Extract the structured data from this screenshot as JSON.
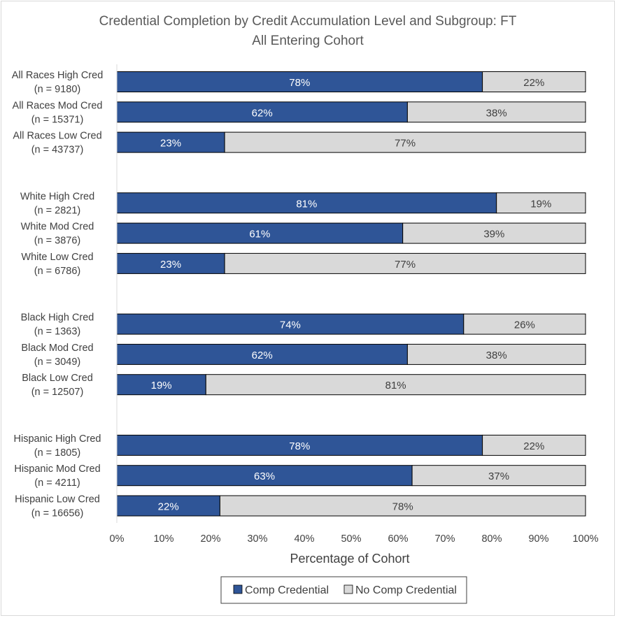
{
  "chart_data": {
    "type": "bar",
    "orientation": "horizontal",
    "stacked": true,
    "title": "Credential Completion by Credit Accumulation Level and Subgroup: FT",
    "subtitle": "All Entering Cohort",
    "xlabel": "Percentage of Cohort",
    "ylabel": "",
    "xlim": [
      0,
      100
    ],
    "x_ticks": [
      "0%",
      "10%",
      "20%",
      "30%",
      "40%",
      "50%",
      "60%",
      "70%",
      "80%",
      "90%",
      "100%"
    ],
    "grid": false,
    "legend_position": "bottom",
    "groups": [
      {
        "rows": [
          {
            "label": "All Races High Cred",
            "n": "(n = 9180)",
            "values": [
              78,
              22
            ]
          },
          {
            "label": "All Races Mod Cred",
            "n": "(n = 15371)",
            "values": [
              62,
              38
            ]
          },
          {
            "label": "All Races Low Cred",
            "n": "(n = 43737)",
            "values": [
              23,
              77
            ]
          }
        ]
      },
      {
        "rows": [
          {
            "label": "White High Cred",
            "n": "(n = 2821)",
            "values": [
              81,
              19
            ]
          },
          {
            "label": "White Mod Cred",
            "n": "(n = 3876)",
            "values": [
              61,
              39
            ]
          },
          {
            "label": "White Low Cred",
            "n": "(n = 6786)",
            "values": [
              23,
              77
            ]
          }
        ]
      },
      {
        "rows": [
          {
            "label": "Black High Cred",
            "n": "(n = 1363)",
            "values": [
              74,
              26
            ]
          },
          {
            "label": "Black Mod Cred",
            "n": "(n = 3049)",
            "values": [
              62,
              38
            ]
          },
          {
            "label": "Black Low Cred",
            "n": "(n = 12507)",
            "values": [
              19,
              81
            ]
          }
        ]
      },
      {
        "rows": [
          {
            "label": "Hispanic High Cred",
            "n": "(n = 1805)",
            "values": [
              78,
              22
            ]
          },
          {
            "label": "Hispanic Mod Cred",
            "n": "(n = 4211)",
            "values": [
              63,
              37
            ]
          },
          {
            "label": "Hispanic Low Cred",
            "n": "(n = 16656)",
            "values": [
              22,
              78
            ]
          }
        ]
      }
    ],
    "series": [
      {
        "name": "Comp Credential",
        "color": "#2f5597",
        "label_color": "#ffffff"
      },
      {
        "name": "No Comp Credential",
        "color": "#d9d9d9",
        "label_color": "#404040"
      }
    ]
  }
}
